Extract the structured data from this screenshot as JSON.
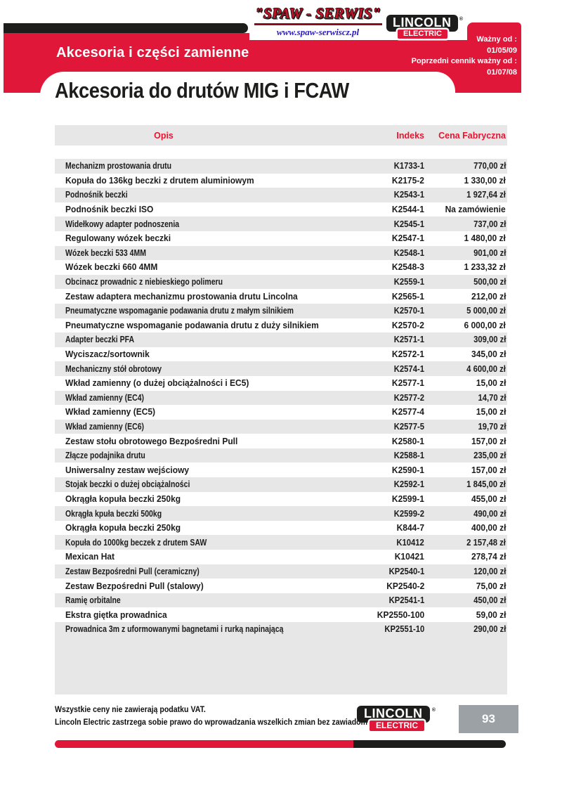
{
  "header": {
    "section_title": "Akcesoria i części zamienne",
    "valid_from_label": "Ważny od :",
    "valid_from_date": "01/05/09",
    "previous_pricelist_label": "Poprzedni cennik ważny od :",
    "previous_pricelist_date": "01/07/08"
  },
  "logos": {
    "spaw_serwis_text": "\"SPAW - SERWIS\"",
    "spaw_serwis_url": "www.spaw-serwiscz.pl",
    "lincoln_word": "LINCOLN",
    "electric_word": "ELECTRIC",
    "registered_mark": "®"
  },
  "title": "Akcesoria do drutów MIG i FCAW",
  "table": {
    "columns": {
      "desc": "Opis",
      "index": "Indeks",
      "price": "Cena Fabryczna"
    },
    "rows": [
      {
        "desc": "Mechanizm prostowania drutu",
        "index": "K1733-1",
        "price": "770,00 zł"
      },
      {
        "desc": "Kopuła do 136kg beczki z drutem aluminiowym",
        "index": "K2175-2",
        "price": "1 330,00 zł"
      },
      {
        "desc": "Podnośnik beczki",
        "index": "K2543-1",
        "price": "1 927,64 zł"
      },
      {
        "desc": "Podnośnik beczki ISO",
        "index": "K2544-1",
        "price": "Na zamówienie"
      },
      {
        "desc": "Widełkowy adapter podnoszenia",
        "index": "K2545-1",
        "price": "737,00 zł"
      },
      {
        "desc": "Regulowany wózek beczki",
        "index": "K2547-1",
        "price": "1 480,00 zł"
      },
      {
        "desc": "Wózek beczki 533 4MM",
        "index": "K2548-1",
        "price": "901,00 zł"
      },
      {
        "desc": "Wózek beczki 660 4MM",
        "index": "K2548-3",
        "price": "1 233,32 zł"
      },
      {
        "desc": "Obcinacz prowadnic z niebieskiego polimeru",
        "index": "K2559-1",
        "price": "500,00 zł"
      },
      {
        "desc": "Zestaw adaptera mechanizmu prostowania drutu Lincolna",
        "index": "K2565-1",
        "price": "212,00 zł"
      },
      {
        "desc": "Pneumatyczne wspomaganie podawania drutu z małym silnikiem",
        "index": "K2570-1",
        "price": "5 000,00 zł"
      },
      {
        "desc": "Pneumatyczne wspomaganie podawania drutu z duży silnikiem",
        "index": "K2570-2",
        "price": "6 000,00 zł"
      },
      {
        "desc": "Adapter beczki PFA",
        "index": "K2571-1",
        "price": "309,00 zł"
      },
      {
        "desc": "Wyciszacz/sortownik",
        "index": "K2572-1",
        "price": "345,00 zł"
      },
      {
        "desc": "Mechaniczny stół obrotowy",
        "index": "K2574-1",
        "price": "4 600,00 zł"
      },
      {
        "desc": "Wkład zamienny (o dużej obciążalności i EC5)",
        "index": "K2577-1",
        "price": "15,00 zł"
      },
      {
        "desc": "Wkład zamienny (EC4)",
        "index": "K2577-2",
        "price": "14,70 zł"
      },
      {
        "desc": "Wkład zamienny (EC5)",
        "index": "K2577-4",
        "price": "15,00 zł"
      },
      {
        "desc": "Wkład zamienny (EC6)",
        "index": "K2577-5",
        "price": "19,70 zł"
      },
      {
        "desc": "Zestaw stołu obrotowego Bezpośredni Pull",
        "index": "K2580-1",
        "price": "157,00 zł"
      },
      {
        "desc": "Złącze podajnika drutu",
        "index": "K2588-1",
        "price": "235,00 zł"
      },
      {
        "desc": "Uniwersalny zestaw wejściowy",
        "index": "K2590-1",
        "price": "157,00 zł"
      },
      {
        "desc": "Stojak beczki o dużej obciążalności",
        "index": "K2592-1",
        "price": "1 845,00 zł"
      },
      {
        "desc": "Okrągła kopuła beczki 250kg",
        "index": "K2599-1",
        "price": "455,00 zł"
      },
      {
        "desc": "Okrągła kpuła beczki 500kg",
        "index": "K2599-2",
        "price": "490,00 zł"
      },
      {
        "desc": "Okrągła kopuła beczki 250kg",
        "index": "K844-7",
        "price": "400,00 zł"
      },
      {
        "desc": "Kopuła do 1000kg beczek z drutem SAW",
        "index": "K10412",
        "price": "2 157,48 zł"
      },
      {
        "desc": "Mexican Hat",
        "index": "K10421",
        "price": "278,74 zł"
      },
      {
        "desc": "Zestaw Bezpośredni Pull (ceramiczny)",
        "index": "KP2540-1",
        "price": "120,00 zł"
      },
      {
        "desc": "Zestaw Bezpośredni Pull (stalowy)",
        "index": "KP2540-2",
        "price": "75,00 zł"
      },
      {
        "desc": "Ramię orbitalne",
        "index": "KP2541-1",
        "price": "450,00 zł"
      },
      {
        "desc": "Ekstra giętka prowadnica",
        "index": "KP2550-100",
        "price": "59,00 zł"
      },
      {
        "desc": "Prowadnica 3m z uformowanymi bagnetami i rurką napinającą",
        "index": "KP2551-10",
        "price": "290,00 zł"
      }
    ]
  },
  "footer": {
    "note_line1": "Wszystkie ceny nie zawierają podatku VAT.",
    "note_line2": "Lincoln Electric zastrzega sobie prawo do wprowadzania wszelkich zmian bez zawiadomienia.",
    "page_number": "93"
  },
  "colors": {
    "brand_red": "#e1173a",
    "brand_black": "#1d1d1b",
    "row_gray": "#e7e7e8",
    "page_box_gray": "#9ba1a5",
    "url_blue": "#2a1ac0",
    "table_header_red": "#e8132f"
  }
}
